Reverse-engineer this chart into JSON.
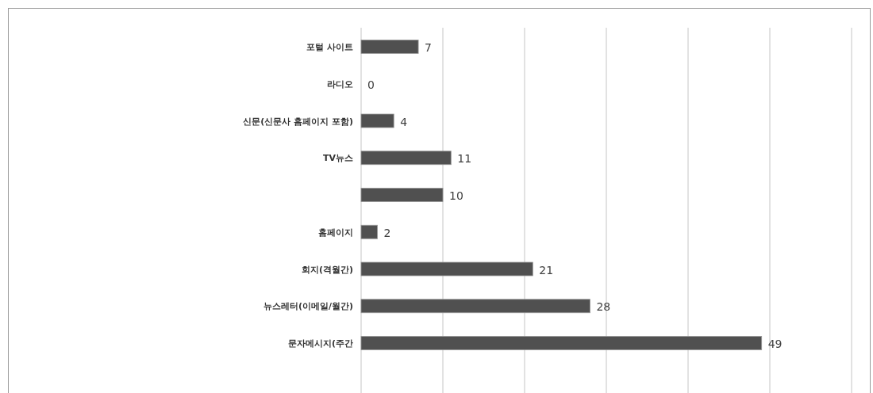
{
  "chart_data": {
    "type": "bar",
    "orientation": "horizontal",
    "categories": [
      "포털 사이트",
      "라디오",
      "신문(신문사 홈페이지 포함)",
      "TV뉴스",
      null,
      "홈페이지",
      "회지(격월간)",
      "뉴스레터(이메일/월간)",
      "문자메시지(주간"
    ],
    "values": [
      7,
      0,
      4,
      11,
      10,
      2,
      21,
      28,
      49
    ],
    "color": "#505050",
    "xlim": [
      0,
      60
    ],
    "xticks": [
      {
        "value": 0,
        "label": null
      },
      {
        "value": 10,
        "label": null
      },
      {
        "value": 20,
        "label": null
      },
      {
        "value": 30,
        "label": null
      },
      {
        "value": 40,
        "label": null
      },
      {
        "value": 50,
        "label": null
      },
      {
        "value": 60,
        "label": null
      }
    ],
    "grid": "x",
    "tick_labels": "y",
    "data_labels": true
  }
}
